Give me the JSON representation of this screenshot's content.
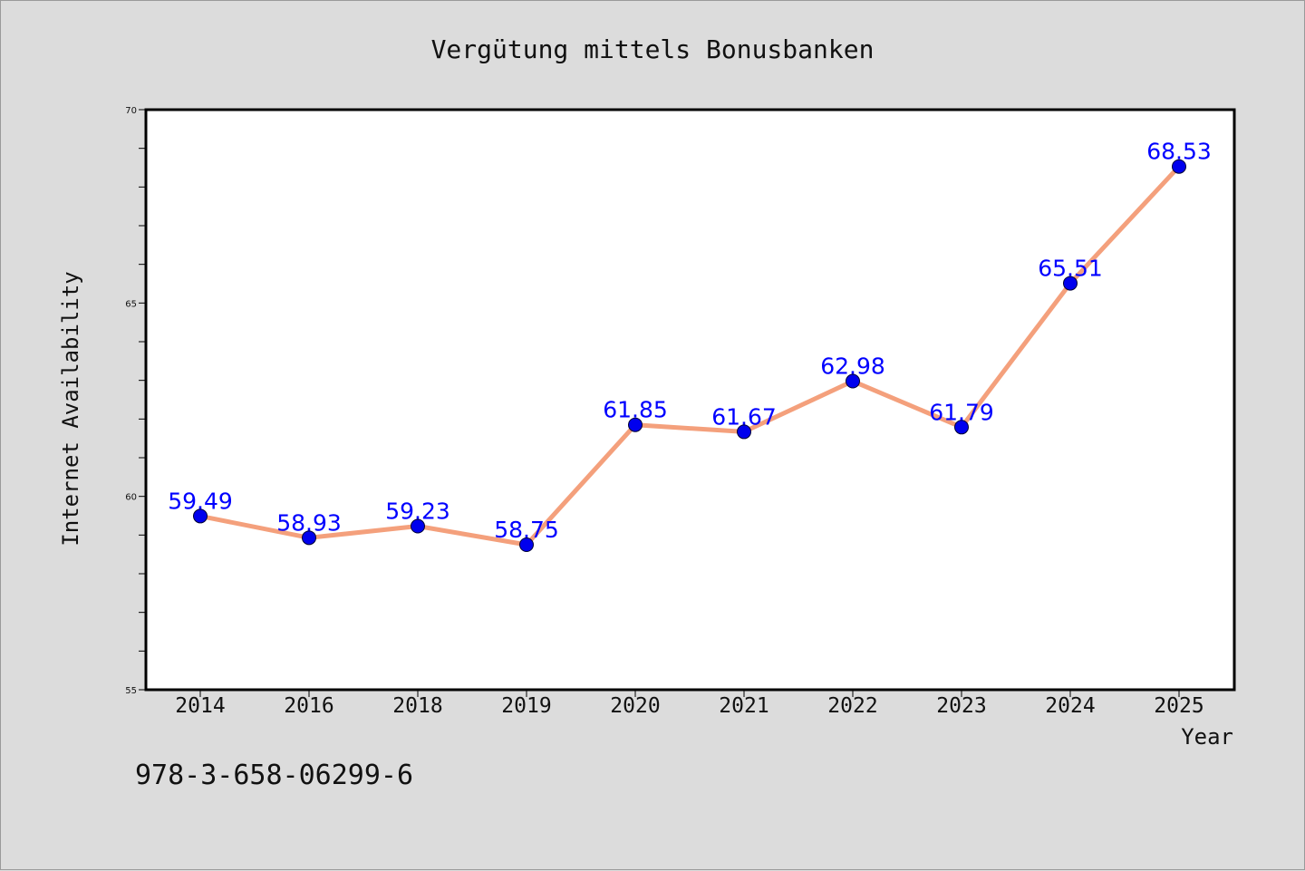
{
  "chart_data": {
    "type": "line",
    "title": "Vergütung mittels Bonusbanken",
    "xlabel": "Year",
    "ylabel": "Internet Availability",
    "categories": [
      "2014",
      "2016",
      "2018",
      "2019",
      "2020",
      "2021",
      "2022",
      "2023",
      "2024",
      "2025"
    ],
    "series": [
      {
        "values": [
          59.49,
          58.93,
          59.23,
          58.75,
          61.85,
          61.67,
          62.98,
          61.79,
          65.51,
          68.53
        ],
        "line_color": "#f4a07c",
        "marker_color": "#0000ee"
      }
    ],
    "data_labels": [
      "59.49",
      "58.93",
      "59.23",
      "58.75",
      "61.85",
      "61.67",
      "62.98",
      "61.79",
      "65.51",
      "68.53"
    ],
    "ylim": [
      55,
      70
    ],
    "yticks": [
      "55",
      "60",
      "65",
      "70"
    ],
    "grid": false,
    "legend": "none",
    "label_color": "#0000ff"
  },
  "footnote": "978-3-658-06299-6"
}
